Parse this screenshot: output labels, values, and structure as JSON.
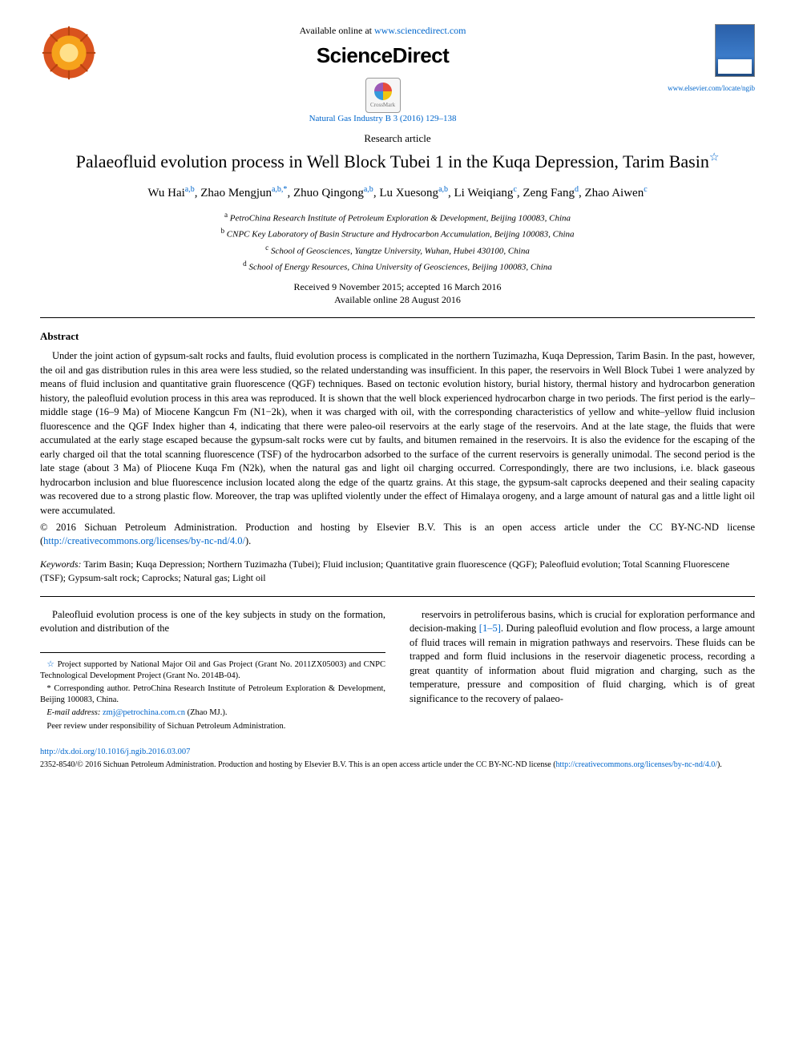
{
  "header": {
    "available_prefix": "Available online at ",
    "available_url": "www.sciencedirect.com",
    "brand": "ScienceDirect",
    "journal_ref": "Natural Gas Industry B 3 (2016) 129–138",
    "elsevier_url": "www.elsevier.com/locate/ngib",
    "crossmark_label": "CrossMark",
    "logo_colors": {
      "outer": "#d9531e",
      "mid": "#f6a21b",
      "inner": "#ffe08a"
    },
    "cover_colors": {
      "top": "#2a5fa8",
      "mid": "#3b7bc9",
      "bottom": "#1e4a80"
    }
  },
  "article": {
    "type": "Research article",
    "title": "Palaeofluid evolution process in Well Block Tubei 1 in the Kuqa Depression, Tarim Basin",
    "title_star": "☆",
    "authors_html": "Wu Hai<sup>a,b</sup>, Zhao Mengjun<sup>a,b,*</sup>, Zhuo Qingong<sup>a,b</sup>, Lu Xuesong<sup>a,b</sup>, Li Weiqiang<sup>c</sup>, Zeng Fang<sup>d</sup>, Zhao Aiwen<sup>c</sup>",
    "affiliations": [
      {
        "sup": "a",
        "text": "PetroChina Research Institute of Petroleum Exploration & Development, Beijing 100083, China"
      },
      {
        "sup": "b",
        "text": "CNPC Key Laboratory of Basin Structure and Hydrocarbon Accumulation, Beijing 100083, China"
      },
      {
        "sup": "c",
        "text": "School of Geosciences, Yangtze University, Wuhan, Hubei 430100, China"
      },
      {
        "sup": "d",
        "text": "School of Energy Resources, China University of Geosciences, Beijing 100083, China"
      }
    ],
    "dates_line1": "Received 9 November 2015; accepted 16 March 2016",
    "dates_line2": "Available online 28 August 2016"
  },
  "abstract": {
    "heading": "Abstract",
    "body": "Under the joint action of gypsum-salt rocks and faults, fluid evolution process is complicated in the northern Tuzimazha, Kuqa Depression, Tarim Basin. In the past, however, the oil and gas distribution rules in this area were less studied, so the related understanding was insufficient. In this paper, the reservoirs in Well Block Tubei 1 were analyzed by means of fluid inclusion and quantitative grain fluorescence (QGF) techniques. Based on tectonic evolution history, burial history, thermal history and hydrocarbon generation history, the paleofluid evolution process in this area was reproduced. It is shown that the well block experienced hydrocarbon charge in two periods. The first period is the early–middle stage (16–9 Ma) of Miocene Kangcun Fm (N1−2k), when it was charged with oil, with the corresponding characteristics of yellow and white–yellow fluid inclusion fluorescence and the QGF Index higher than 4, indicating that there were paleo-oil reservoirs at the early stage of the reservoirs. And at the late stage, the fluids that were accumulated at the early stage escaped because the gypsum-salt rocks were cut by faults, and bitumen remained in the reservoirs. It is also the evidence for the escaping of the early charged oil that the total scanning fluorescence (TSF) of the hydrocarbon adsorbed to the surface of the current reservoirs is generally unimodal. The second period is the late stage (about 3 Ma) of Pliocene Kuqa Fm (N2k), when the natural gas and light oil charging occurred. Correspondingly, there are two inclusions, i.e. black gaseous hydrocarbon inclusion and blue fluorescence inclusion located along the edge of the quartz grains. At this stage, the gypsum-salt caprocks deepened and their sealing capacity was recovered due to a strong plastic flow. Moreover, the trap was uplifted violently under the effect of Himalaya orogeny, and a large amount of natural gas and a little light oil were accumulated.",
    "license": "© 2016 Sichuan Petroleum Administration. Production and hosting by Elsevier B.V. This is an open access article under the CC BY-NC-ND license (",
    "license_url_text": "http://creativecommons.org/licenses/by-nc-nd/4.0/",
    "license_close": ")."
  },
  "keywords": {
    "label": "Keywords:",
    "text": " Tarim Basin; Kuqa Depression; Northern Tuzimazha (Tubei); Fluid inclusion; Quantitative grain fluorescence (QGF); Paleofluid evolution; Total Scanning Fluorescene (TSF); Gypsum-salt rock; Caprocks; Natural gas; Light oil"
  },
  "body": {
    "left": "Paleofluid evolution process is one of the key subjects in study on the formation, evolution and distribution of the",
    "right": "reservoirs in petroliferous basins, which is crucial for exploration performance and decision-making [1–5]. During paleofluid evolution and flow process, a large amount of fluid traces will remain in migration pathways and reservoirs. These fluids can be trapped and form fluid inclusions in the reservoir diagenetic process, recording a great quantity of information about fluid migration and charging, such as the temperature, pressure and composition of fluid charging, which is of great significance to the recovery of palaeo-",
    "cite_range": "[1–5]"
  },
  "footnotes": {
    "funding_star": "☆",
    "funding": " Project supported by National Major Oil and Gas Project (Grant No. 2011ZX05003) and CNPC Technological Development Project (Grant No. 2014B-04).",
    "corresp": "* Corresponding author. PetroChina Research Institute of Petroleum Exploration & Development, Beijing 100083, China.",
    "email_label": "E-mail address: ",
    "email": "zmj@petrochina.com.cn",
    "email_paren": " (Zhao MJ.).",
    "peer": "Peer review under responsibility of Sichuan Petroleum Administration."
  },
  "footer": {
    "doi": "http://dx.doi.org/10.1016/j.ngib.2016.03.007",
    "issn_line": "2352-8540/© 2016 Sichuan Petroleum Administration. Production and hosting by Elsevier B.V. This is an open access article under the CC BY-NC-ND license (",
    "license_url_text": "http://creativecommons.org/licenses/by-nc-nd/4.0/",
    "license_close": ")."
  },
  "colors": {
    "link": "#0066cc",
    "text": "#000000",
    "rule": "#000000"
  }
}
